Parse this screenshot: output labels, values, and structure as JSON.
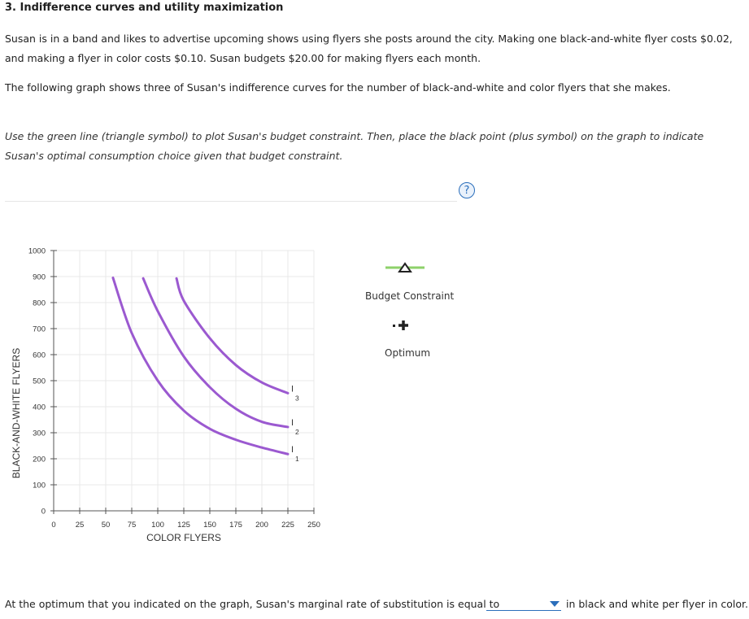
{
  "question": {
    "title": "3. Indifference curves and utility maximization",
    "paragraph1": "Susan is in a band and likes to advertise upcoming shows using flyers she posts around the city. Making one black-and-white flyer costs $0.02, and making a flyer in color costs $0.10. Susan budgets $20.00 for making flyers each month.",
    "paragraph2": "The following graph shows three of Susan's indifference curves for the number of black-and-white and color flyers that she makes.",
    "instructions": "Use the green line (triangle symbol) to plot Susan's budget constraint. Then, place the black point (plus symbol) on the graph to indicate Susan's optimal consumption choice given that budget constraint.",
    "help_icon": "?"
  },
  "chart_data": {
    "type": "line",
    "xlabel": "COLOR FLYERS",
    "ylabel": "BLACK-AND-WHITE FLYERS",
    "xlim": [
      0,
      250
    ],
    "ylim": [
      0,
      1000
    ],
    "xticks": [
      0,
      25,
      50,
      75,
      100,
      125,
      150,
      175,
      200,
      225,
      250
    ],
    "yticks": [
      0,
      100,
      200,
      300,
      400,
      500,
      600,
      700,
      800,
      900,
      1000
    ],
    "grid": true,
    "curve_color": "#9b59d0",
    "series": [
      {
        "name": "I1",
        "label_main": "I",
        "label_sub": "1",
        "x": [
          57,
          75,
          100,
          125,
          150,
          175,
          200,
          225
        ],
        "y": [
          895,
          683,
          500,
          385,
          315,
          273,
          243,
          218
        ]
      },
      {
        "name": "I2",
        "label_main": "I",
        "label_sub": "2",
        "x": [
          86,
          100,
          125,
          150,
          175,
          200,
          225
        ],
        "y": [
          893,
          767,
          593,
          475,
          392,
          342,
          322
        ]
      },
      {
        "name": "I3",
        "label_main": "I",
        "label_sub": "3",
        "x": [
          118,
          125,
          150,
          175,
          200,
          225
        ],
        "y": [
          893,
          807,
          663,
          560,
          493,
          452
        ]
      }
    ]
  },
  "legend": {
    "budget_label": "Budget Constraint",
    "budget_color": "#8ed16a",
    "optimum_label": "Optimum",
    "optimum_symbol": "plus"
  },
  "followup": {
    "question_text": "At the optimum that you indicated on the graph, Susan's marginal rate of substitution is equal to",
    "dropdown_value": "",
    "tail_text": "in black and white per flyer in color."
  }
}
